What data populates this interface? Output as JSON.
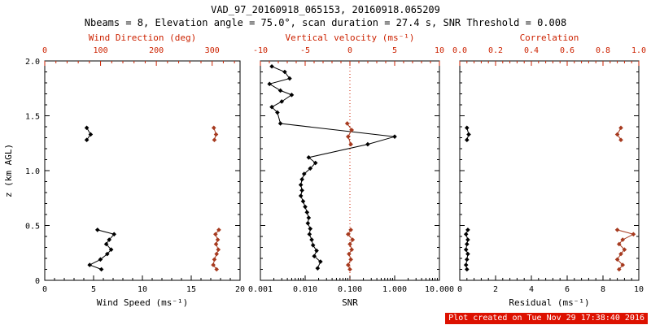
{
  "header": {
    "title": "VAD_97_20160918_065153, 20160918.065209",
    "subtitle": "Nbeams = 8, Elevation angle = 75.0°, scan duration = 27.4 s, SNR Threshold = 0.008"
  },
  "footer": {
    "created": "Plot created on Tue Nov 29 17:38:40 2016"
  },
  "colors": {
    "black": "#000000",
    "axis_red": "#cc2200",
    "series_red": "#a63a1f",
    "refline_red": "#cc2200",
    "footer_bg": "#dd1100",
    "footer_text": "#ffffff"
  },
  "chart_data": [
    {
      "type": "line",
      "panel": "wind",
      "y": {
        "range": [
          0,
          2
        ],
        "tick_values": [
          0,
          0.5,
          1,
          1.5,
          2
        ],
        "tick_labels": [
          "0",
          "0.5",
          "1.0",
          "1.5",
          "2.0"
        ],
        "title": "z (km AGL)"
      },
      "x_bottom": {
        "title": "Wind Speed (ms⁻¹)",
        "scale": "linear",
        "range": [
          0,
          20
        ],
        "tick_values": [
          0,
          5,
          10,
          15,
          20
        ],
        "tick_labels": [
          "0",
          "5",
          "10",
          "15",
          "20"
        ]
      },
      "x_top": {
        "title": "Wind Direction (deg)",
        "scale": "linear",
        "range": [
          0,
          350
        ],
        "tick_values": [
          0,
          100,
          200,
          300
        ],
        "tick_labels": [
          "0",
          "100",
          "200",
          "300"
        ]
      },
      "series": [
        {
          "name": "wind-speed",
          "color": "#000000",
          "axis": "bottom",
          "segments": [
            [
              [
                4.3,
                1.39
              ],
              [
                4.7,
                1.33
              ],
              [
                4.3,
                1.28
              ]
            ],
            [
              [
                5.4,
                0.46
              ],
              [
                7.1,
                0.42
              ],
              [
                6.6,
                0.37
              ],
              [
                6.3,
                0.33
              ],
              [
                6.8,
                0.28
              ],
              [
                6.4,
                0.24
              ],
              [
                5.7,
                0.19
              ],
              [
                4.6,
                0.14
              ],
              [
                5.8,
                0.1
              ]
            ]
          ]
        },
        {
          "name": "wind-direction",
          "color": "#a63a1f",
          "axis": "top",
          "segments": [
            [
              [
                303,
                1.39
              ],
              [
                307,
                1.33
              ],
              [
                304,
                1.28
              ]
            ],
            [
              [
                312,
                0.46
              ],
              [
                306,
                0.42
              ],
              [
                310,
                0.37
              ],
              [
                307,
                0.33
              ],
              [
                311,
                0.28
              ],
              [
                308,
                0.24
              ],
              [
                304,
                0.19
              ],
              [
                302,
                0.14
              ],
              [
                308,
                0.1
              ]
            ]
          ]
        }
      ]
    },
    {
      "type": "line",
      "panel": "snr",
      "y": {
        "range": [
          0,
          2
        ],
        "tick_values": [
          0,
          0.5,
          1,
          1.5,
          2
        ]
      },
      "x_bottom": {
        "title": "SNR",
        "scale": "log",
        "range": [
          0.001,
          10
        ],
        "tick_values": [
          0.001,
          0.01,
          0.1,
          1,
          10
        ],
        "tick_labels": [
          "0.001",
          "0.010",
          "0.100",
          "1.000",
          "10.000"
        ]
      },
      "x_top": {
        "title": "Vertical velocity (ms⁻¹)",
        "scale": "linear",
        "range": [
          -10,
          10
        ],
        "tick_values": [
          -10,
          -5,
          0,
          5,
          10
        ],
        "tick_labels": [
          "-10",
          "-5",
          "0",
          "5",
          "10"
        ]
      },
      "refline": {
        "axis": "top",
        "value": 0
      },
      "series": [
        {
          "name": "snr",
          "color": "#000000",
          "axis": "bottom",
          "segments": [
            [
              [
                0.0018,
                1.95
              ],
              [
                0.0035,
                1.9
              ],
              [
                0.0045,
                1.84
              ],
              [
                0.0016,
                1.79
              ],
              [
                0.0028,
                1.73
              ],
              [
                0.005,
                1.69
              ],
              [
                0.003,
                1.63
              ],
              [
                0.0018,
                1.58
              ],
              [
                0.0024,
                1.53
              ],
              [
                0.0028,
                1.43
              ],
              [
                1.0,
                1.31
              ],
              [
                0.25,
                1.24
              ],
              [
                0.012,
                1.12
              ],
              [
                0.017,
                1.07
              ],
              [
                0.013,
                1.02
              ],
              [
                0.0095,
                0.97
              ],
              [
                0.0085,
                0.92
              ],
              [
                0.008,
                0.87
              ],
              [
                0.0085,
                0.82
              ],
              [
                0.008,
                0.77
              ],
              [
                0.009,
                0.72
              ],
              [
                0.01,
                0.67
              ],
              [
                0.011,
                0.62
              ],
              [
                0.012,
                0.57
              ],
              [
                0.0115,
                0.52
              ],
              [
                0.013,
                0.47
              ],
              [
                0.0125,
                0.42
              ],
              [
                0.014,
                0.37
              ],
              [
                0.015,
                0.32
              ],
              [
                0.018,
                0.27
              ],
              [
                0.016,
                0.22
              ],
              [
                0.022,
                0.17
              ],
              [
                0.019,
                0.11
              ]
            ]
          ]
        },
        {
          "name": "vertical-velocity",
          "color": "#a63a1f",
          "axis": "top",
          "segments": [
            [
              [
                -0.3,
                1.43
              ],
              [
                0.2,
                1.37
              ],
              [
                -0.2,
                1.31
              ],
              [
                0.1,
                1.24
              ]
            ],
            [
              [
                0.1,
                0.46
              ],
              [
                -0.2,
                0.42
              ],
              [
                0.3,
                0.37
              ],
              [
                0.0,
                0.33
              ],
              [
                0.2,
                0.28
              ],
              [
                -0.1,
                0.24
              ],
              [
                0.1,
                0.19
              ],
              [
                -0.2,
                0.14
              ],
              [
                0.0,
                0.1
              ]
            ]
          ]
        }
      ]
    },
    {
      "type": "line",
      "panel": "residual",
      "y": {
        "range": [
          0,
          2
        ],
        "tick_values": [
          0,
          0.5,
          1,
          1.5,
          2
        ]
      },
      "x_bottom": {
        "title": "Residual (ms⁻¹)",
        "scale": "linear",
        "range": [
          0,
          10
        ],
        "tick_values": [
          0,
          2,
          4,
          6,
          8,
          10
        ],
        "tick_labels": [
          "0",
          "2",
          "4",
          "6",
          "8",
          "10"
        ]
      },
      "x_top": {
        "title": "Correlation",
        "scale": "linear",
        "range": [
          0,
          1
        ],
        "tick_values": [
          0,
          0.2,
          0.4,
          0.6,
          0.8,
          1
        ],
        "tick_labels": [
          "0.0",
          "0.2",
          "0.4",
          "0.6",
          "0.8",
          "1.0"
        ]
      },
      "series": [
        {
          "name": "residual",
          "color": "#000000",
          "axis": "bottom",
          "segments": [
            [
              [
                0.4,
                1.39
              ],
              [
                0.5,
                1.33
              ],
              [
                0.4,
                1.28
              ]
            ],
            [
              [
                0.45,
                0.46
              ],
              [
                0.35,
                0.42
              ],
              [
                0.45,
                0.37
              ],
              [
                0.4,
                0.33
              ],
              [
                0.35,
                0.28
              ],
              [
                0.45,
                0.24
              ],
              [
                0.4,
                0.19
              ],
              [
                0.35,
                0.14
              ],
              [
                0.4,
                0.1
              ]
            ]
          ]
        },
        {
          "name": "correlation",
          "color": "#a63a1f",
          "axis": "top",
          "segments": [
            [
              [
                0.9,
                1.39
              ],
              [
                0.88,
                1.33
              ],
              [
                0.9,
                1.28
              ]
            ],
            [
              [
                0.88,
                0.46
              ],
              [
                0.97,
                0.42
              ],
              [
                0.91,
                0.37
              ],
              [
                0.89,
                0.33
              ],
              [
                0.92,
                0.28
              ],
              [
                0.9,
                0.24
              ],
              [
                0.88,
                0.19
              ],
              [
                0.91,
                0.14
              ],
              [
                0.89,
                0.1
              ]
            ]
          ]
        }
      ]
    }
  ]
}
